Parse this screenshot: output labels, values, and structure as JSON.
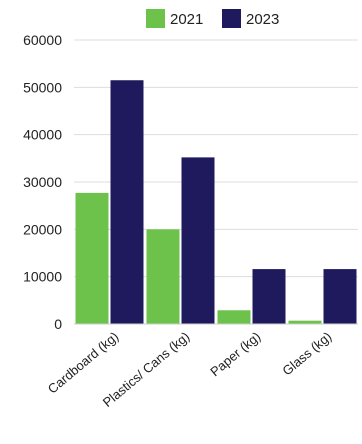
{
  "chart_data": {
    "type": "bar",
    "categories": [
      "Cardboard (kg)",
      "Plastics/ Cans (kg)",
      "Paper (kg)",
      "Glass (kg)"
    ],
    "series": [
      {
        "name": "2021",
        "color": "#6cc24a",
        "values": [
          27700,
          20000,
          2900,
          700
        ]
      },
      {
        "name": "2023",
        "color": "#1f1a5e",
        "values": [
          51500,
          35200,
          11600,
          11600
        ]
      }
    ],
    "ylim": [
      0,
      60000
    ],
    "yticks": [
      "0",
      "10000",
      "20000",
      "30000",
      "40000",
      "50000",
      "60000"
    ],
    "grid": true,
    "legend": "top-center",
    "title": "",
    "xlabel": "",
    "ylabel": ""
  }
}
